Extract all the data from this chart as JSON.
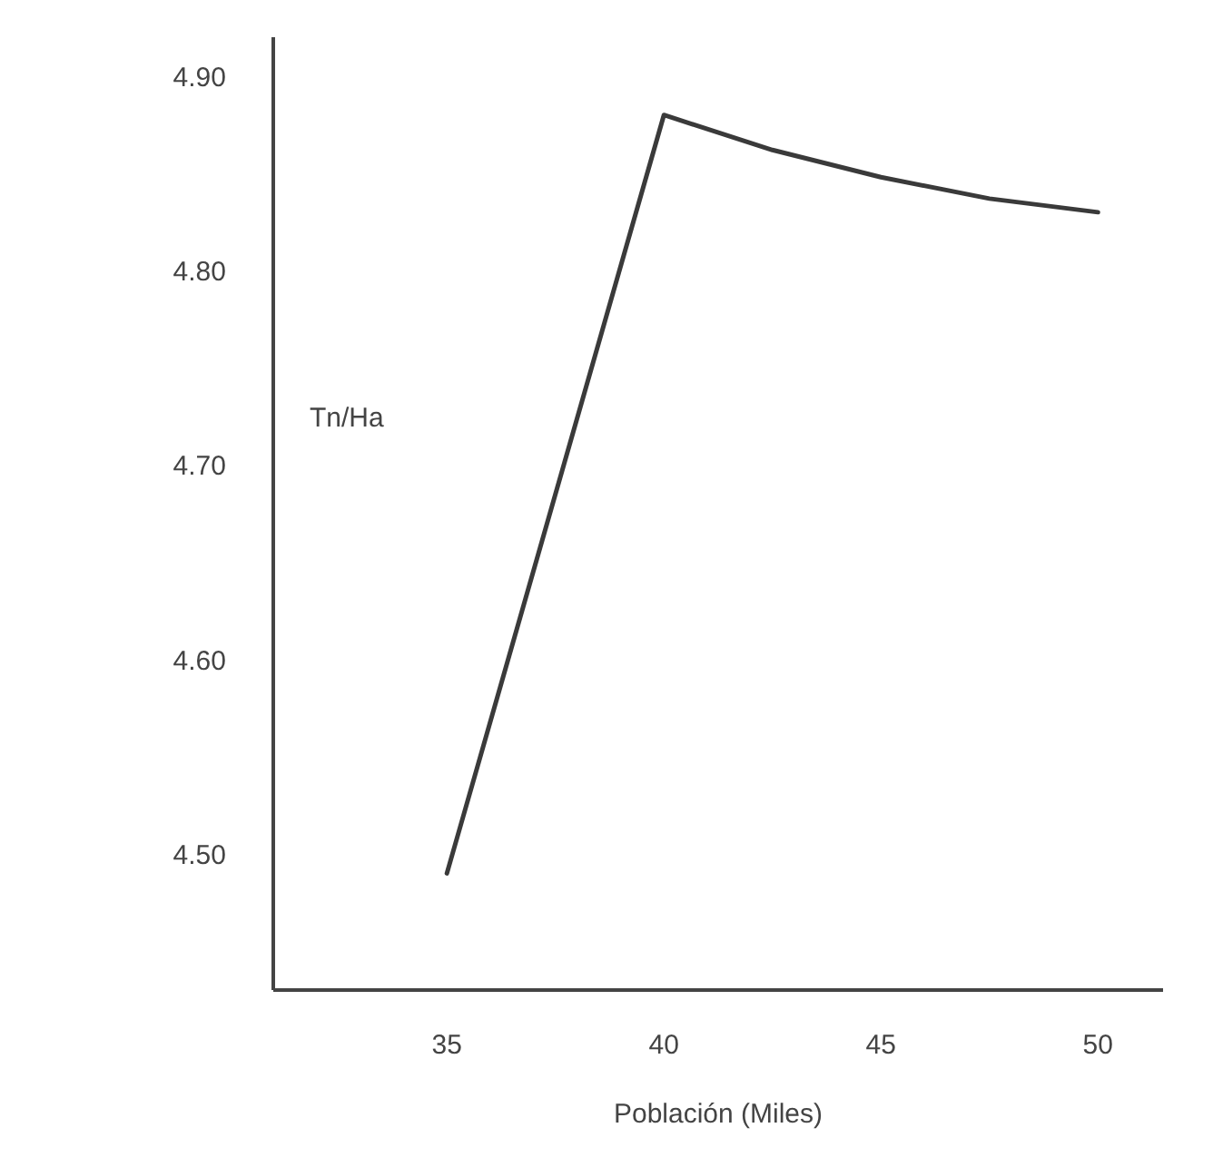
{
  "chart_data": {
    "type": "line",
    "xlabel": "Población (Miles)",
    "ylabel": "Tn/Ha",
    "x": [
      35,
      40,
      42.5,
      45,
      47.5,
      50
    ],
    "series": [
      {
        "color": "#3a3a3a",
        "values": [
          4.49,
          4.88,
          4.862,
          4.848,
          4.837,
          4.83
        ]
      }
    ],
    "xlim": [
      31,
      51.5
    ],
    "ylim": [
      4.43,
      4.92
    ],
    "xticks": [
      35,
      40,
      45,
      50
    ],
    "yticks": [
      {
        "value": 4.5,
        "label": "4.50"
      },
      {
        "value": 4.6,
        "label": "4.60"
      },
      {
        "value": 4.7,
        "label": "4.70"
      },
      {
        "value": 4.8,
        "label": "4.80"
      },
      {
        "value": 4.9,
        "label": "4.90"
      }
    ],
    "grid": false,
    "marker": "none",
    "line_style": "solid"
  }
}
